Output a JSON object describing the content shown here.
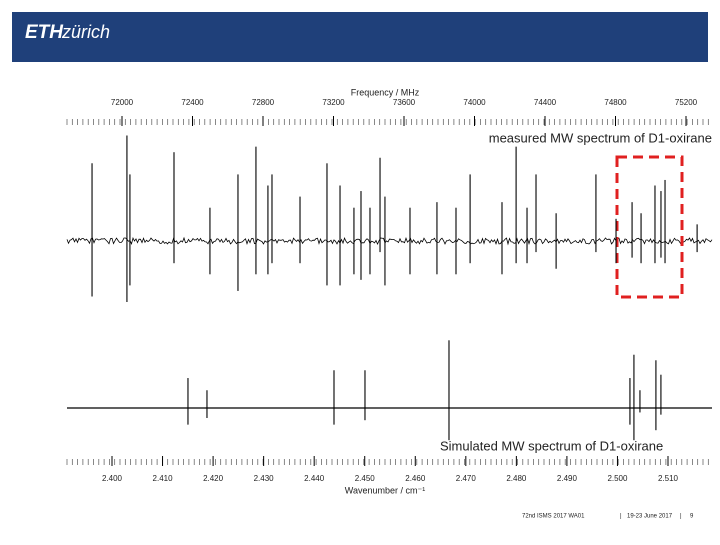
{
  "header": {
    "logo_bold": "ETH",
    "logo_light": "zürich"
  },
  "chart_data": [
    {
      "type": "stick",
      "label": "measured MW spectrum of D1-oxirane",
      "xlabel": "Frequency / MHz",
      "xticks": [
        72000,
        72400,
        72800,
        73200,
        73600,
        74000,
        74400,
        74800,
        75200
      ],
      "x": [
        71830,
        72028,
        72045,
        72295,
        72499,
        72658,
        72760,
        72828,
        72851,
        73010,
        73163,
        73237,
        73316,
        73356,
        73407,
        73464,
        73492,
        73634,
        73787,
        73895,
        73975,
        74156,
        74236,
        74298,
        74349,
        74463,
        74689,
        74803,
        74894,
        74945,
        75024,
        75058,
        75081,
        75263
      ],
      "values": [
        [
          -0.5,
          0.7
        ],
        [
          -0.55,
          0.95
        ],
        [
          -0.4,
          0.6
        ],
        [
          -0.2,
          0.8
        ],
        [
          -0.3,
          0.3
        ],
        [
          -0.45,
          0.6
        ],
        [
          -0.3,
          0.85
        ],
        [
          -0.3,
          0.5
        ],
        [
          -0.2,
          0.6
        ],
        [
          -0.2,
          0.4
        ],
        [
          -0.4,
          0.7
        ],
        [
          -0.4,
          0.5
        ],
        [
          -0.3,
          0.3
        ],
        [
          -0.35,
          0.45
        ],
        [
          -0.3,
          0.3
        ],
        [
          -0.1,
          0.75
        ],
        [
          -0.4,
          0.4
        ],
        [
          -0.3,
          0.3
        ],
        [
          -0.3,
          0.35
        ],
        [
          -0.3,
          0.3
        ],
        [
          -0.2,
          0.6
        ],
        [
          -0.3,
          0.35
        ],
        [
          -0.2,
          0.85
        ],
        [
          -0.2,
          0.3
        ],
        [
          -0.1,
          0.6
        ],
        [
          -0.25,
          0.25
        ],
        [
          -0.1,
          0.6
        ],
        [
          -0.2,
          0.2
        ],
        [
          -0.15,
          0.35
        ],
        [
          -0.2,
          0.25
        ],
        [
          -0.2,
          0.5
        ],
        [
          -0.15,
          0.45
        ],
        [
          -0.2,
          0.55
        ],
        [
          -0.1,
          0.15
        ]
      ],
      "color": "#000000"
    },
    {
      "type": "stick",
      "label": "Simulated MW spectrum of D1-oxirane",
      "xlabel": "Wavenumber / cm⁻¹",
      "xticks": [
        {
          "value": 2.4,
          "label": "2.400"
        },
        {
          "value": 2.41,
          "label": "2.410"
        },
        {
          "value": 2.42,
          "label": "2.420"
        },
        {
          "value": 2.43,
          "label": "2.430"
        },
        {
          "value": 2.44,
          "label": "2.440"
        },
        {
          "value": 2.45,
          "label": "2.450"
        },
        {
          "value": 2.46,
          "label": "2.460"
        },
        {
          "value": 2.47,
          "label": "2.470"
        },
        {
          "value": 2.48,
          "label": "2.480"
        },
        {
          "value": 2.49,
          "label": "2.490"
        },
        {
          "value": 2.5,
          "label": "2.500"
        },
        {
          "value": 2.51,
          "label": "2.510"
        }
      ],
      "x": [
        2.41503,
        2.41879,
        2.44392,
        2.45005,
        2.46667,
        2.50247,
        2.50326,
        2.50445,
        2.50761,
        2.5086
      ],
      "values": [
        [
          -0.15,
          0.27
        ],
        [
          -0.09,
          0.16
        ],
        [
          -0.15,
          0.34
        ],
        [
          -0.11,
          0.34
        ],
        [
          -0.29,
          0.61
        ],
        [
          -0.15,
          0.27
        ],
        [
          -0.29,
          0.48
        ],
        [
          -0.04,
          0.16
        ],
        [
          -0.2,
          0.43
        ],
        [
          -0.06,
          0.3
        ]
      ],
      "color": "#000000"
    }
  ],
  "footer": {
    "event": "72nd ISMS 2017 WA01",
    "date": "19-23 June 2017",
    "page": "9"
  }
}
